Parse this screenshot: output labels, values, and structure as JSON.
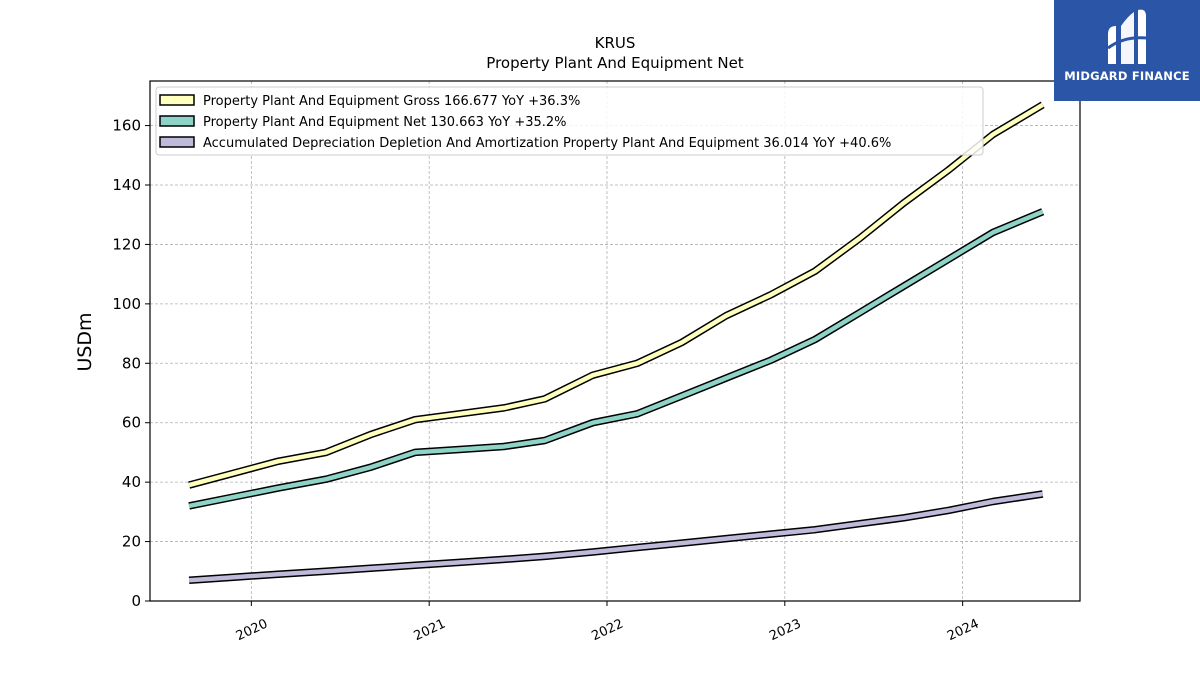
{
  "brand": {
    "name": "MIDGARD FINANCE",
    "bg_color": "#2b56a8"
  },
  "chart_data": {
    "type": "line",
    "title": "KRUS",
    "subtitle": "Property Plant And Equipment Net",
    "ylabel": "USDm",
    "xlabel": "",
    "ylim": [
      0,
      175
    ],
    "xlim": [
      2019.43,
      2024.66
    ],
    "yticks": [
      0,
      20,
      40,
      60,
      80,
      100,
      120,
      140,
      160
    ],
    "xticks": [
      2020,
      2021,
      2022,
      2023,
      2024
    ],
    "xtick_labels": [
      "2020",
      "2021",
      "2022",
      "2023",
      "2024"
    ],
    "grid": true,
    "legend_position": "top-left",
    "x": [
      2019.65,
      2019.9,
      2020.15,
      2020.42,
      2020.67,
      2020.92,
      2021.17,
      2021.42,
      2021.65,
      2021.92,
      2022.17,
      2022.42,
      2022.67,
      2022.92,
      2023.17,
      2023.42,
      2023.67,
      2023.92,
      2024.17,
      2024.45
    ],
    "series": [
      {
        "name": "Property Plant And Equipment Gross",
        "legend": "Property Plant And Equipment Gross  166.677 YoY +36.3%",
        "color": "#ffffbe",
        "values": [
          39,
          43,
          47,
          50,
          56,
          61,
          63,
          65,
          68,
          76,
          80,
          87,
          96,
          103,
          111,
          122,
          134,
          145,
          157,
          167
        ]
      },
      {
        "name": "Property Plant And Equipment Net",
        "legend": "Property Plant And Equipment Net  130.663 YoY +35.2%",
        "color": "#8dd3c7",
        "values": [
          32,
          35,
          38,
          41,
          45,
          50,
          51,
          52,
          54,
          60,
          63,
          69,
          75,
          81,
          88,
          97,
          106,
          115,
          124,
          131
        ]
      },
      {
        "name": "Accumulated Depreciation Depletion And Amortization Property Plant And Equipment",
        "legend": "Accumulated Depreciation Depletion And Amortization Property Plant And Equipment  36.014 YoY +40.6%",
        "color": "#bebada",
        "values": [
          7,
          8,
          9,
          10,
          11,
          12,
          13,
          14,
          15,
          16.5,
          18,
          19.5,
          21,
          22.5,
          24,
          26,
          28,
          30.5,
          33.5,
          36
        ]
      }
    ]
  }
}
